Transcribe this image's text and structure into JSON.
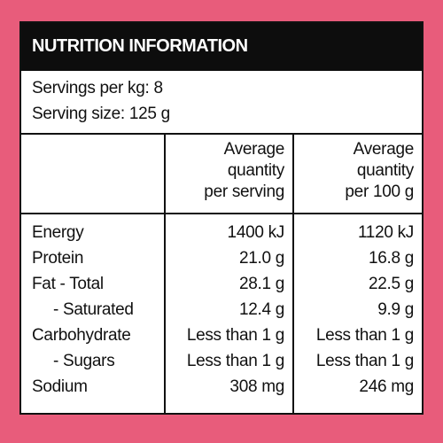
{
  "header": {
    "title": "NUTRITION INFORMATION"
  },
  "servings": [
    "Servings per kg: 8",
    "Serving size: 125 g"
  ],
  "table": {
    "columns": [
      [
        "Average",
        "quantity",
        "per serving"
      ],
      [
        "Average",
        "quantity",
        "per 100 g"
      ]
    ],
    "rows": [
      [
        "Energy",
        "1400 kJ",
        "1120 kJ"
      ],
      [
        "Protein",
        "21.0 g",
        "16.8 g"
      ],
      [
        "Fat - Total",
        "28.1 g",
        "22.5 g"
      ],
      [
        "- Saturated",
        "12.4 g",
        "9.9 g"
      ],
      [
        "Carbohydrate",
        "Less than 1 g",
        "Less than 1 g"
      ],
      [
        "- Sugars",
        "Less than 1 g",
        "Less than 1 g"
      ],
      [
        "Sodium",
        "308 mg",
        "246 mg"
      ]
    ]
  }
}
